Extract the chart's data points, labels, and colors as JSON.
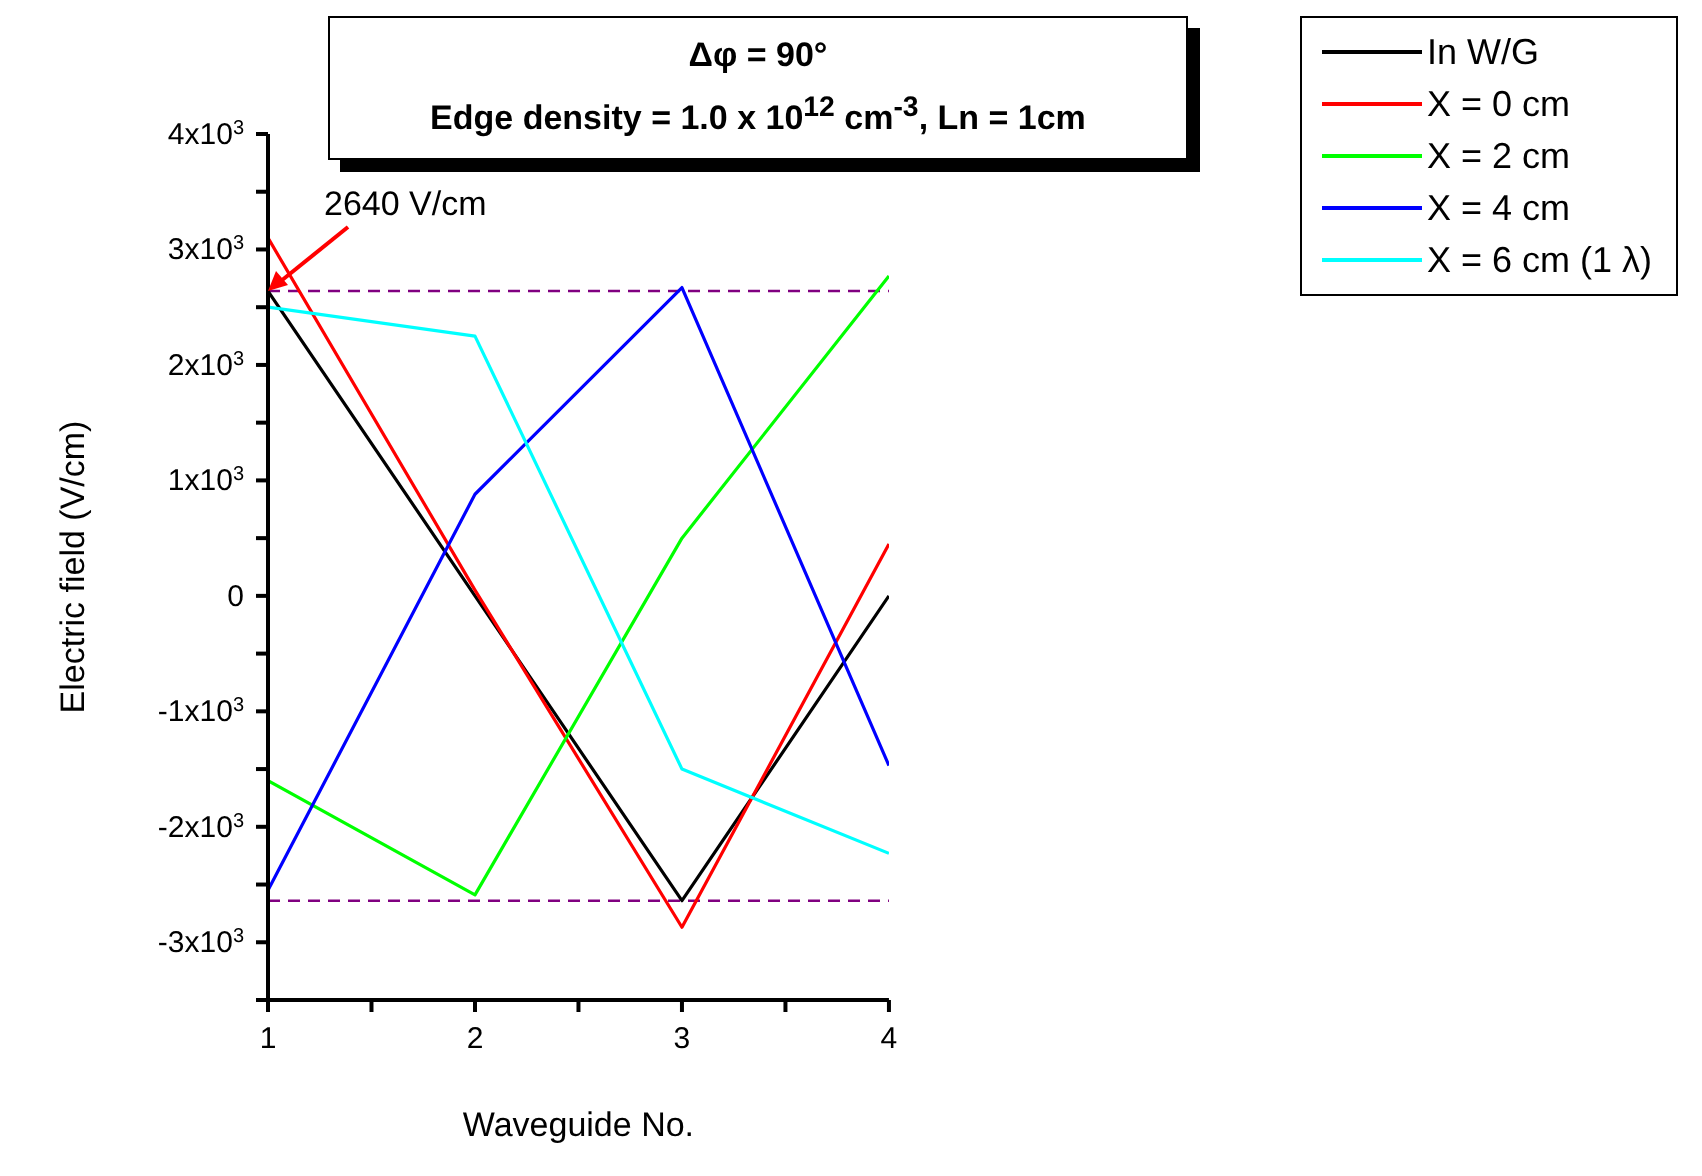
{
  "chart_data": {
    "type": "line",
    "title": "Δφ = 90°",
    "subtitle": "Edge density = 1.0 x 10$^{12}$ cm$^{-3}$, Ln = 1cm",
    "xlabel": "Waveguide No.",
    "ylabel": "Electric field (V/cm)",
    "x": [
      1,
      2,
      3,
      4
    ],
    "series": [
      {
        "name": "In W/G",
        "color": "#000000",
        "values": [
          2640,
          0,
          -2640,
          0
        ]
      },
      {
        "name": "X = 0 cm",
        "color": "#ff0000",
        "values": [
          3100,
          50,
          -2870,
          450
        ]
      },
      {
        "name": "X = 2 cm",
        "color": "#00ff00",
        "values": [
          -1600,
          -2590,
          500,
          2770
        ]
      },
      {
        "name": "X = 4 cm",
        "color": "#0000ff",
        "values": [
          -2550,
          880,
          2670,
          -1470
        ]
      },
      {
        "name": "X = 6 cm (1 λ)",
        "color": "#00ffff",
        "values": [
          2500,
          2250,
          -1500,
          -2230
        ]
      }
    ],
    "xlim": [
      1,
      4
    ],
    "xticks": [
      1,
      {
        "value": 1.5,
        "label": null
      },
      2,
      {
        "value": 2.5,
        "label": null
      },
      3,
      {
        "value": 3.5,
        "label": null
      },
      4
    ],
    "ylim": [
      -3500,
      4000
    ],
    "yticks": [
      {
        "value": -3500,
        "label": null
      },
      {
        "value": -3000,
        "label": "-3x10$^{3}$"
      },
      {
        "value": -2500,
        "label": null
      },
      {
        "value": -2000,
        "label": "-2x10$^{3}$"
      },
      {
        "value": -1500,
        "label": null
      },
      {
        "value": -1000,
        "label": "-1x10$^{3}$"
      },
      {
        "value": -500,
        "label": null
      },
      0,
      {
        "value": 500,
        "label": null
      },
      {
        "value": 1000,
        "label": "1x10$^{3}$"
      },
      {
        "value": 1500,
        "label": null
      },
      {
        "value": 2000,
        "label": "2x10$^{3}$"
      },
      {
        "value": 2500,
        "label": null
      },
      {
        "value": 3000,
        "label": "3x10$^{3}$"
      },
      {
        "value": 3500,
        "label": null
      },
      {
        "value": 4000,
        "label": "4x10$^{3}$"
      }
    ],
    "ref_lines": [
      {
        "axis": "y",
        "value": 2640,
        "color": "#800080",
        "line_style": "dashed"
      },
      {
        "axis": "y",
        "value": -2640,
        "color": "#800080",
        "line_style": "dashed"
      }
    ],
    "annotations": [
      {
        "text": "2640 V/cm",
        "x": 1,
        "y": 2640
      }
    ],
    "legend": "top right",
    "marker": "none",
    "line_style": "solid",
    "grid": false
  }
}
